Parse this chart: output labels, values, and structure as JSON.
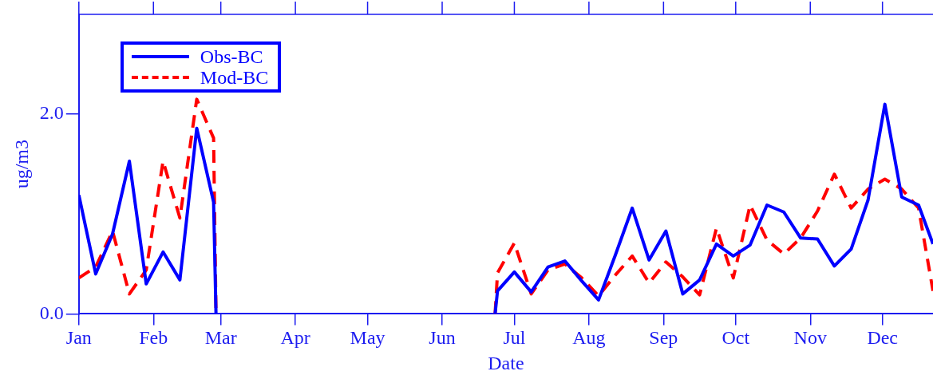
{
  "chart_data": {
    "type": "line",
    "xlabel": "Date",
    "ylabel": "ug/m3",
    "x": [
      "--01-01",
      "--01-08",
      "--01-15",
      "--01-22",
      "--01-29",
      "--02-05",
      "--02-12",
      "--02-19",
      "--02-26",
      "--02-27",
      "--04-15",
      "--06-23",
      "--06-24",
      "--07-01",
      "--07-08",
      "--07-15",
      "--07-22",
      "--07-29",
      "--08-05",
      "--08-12",
      "--08-19",
      "--08-26",
      "--09-02",
      "--09-09",
      "--09-16",
      "--09-23",
      "--09-30",
      "--10-07",
      "--10-14",
      "--10-21",
      "--10-28",
      "--11-04",
      "--11-11",
      "--11-18",
      "--11-25",
      "--12-02",
      "--12-09",
      "--12-16",
      "--12-22"
    ],
    "series": [
      {
        "name": "Obs-BC",
        "color": "#0000ff",
        "line_style": "solid",
        "values": [
          1.19,
          0.4,
          0.8,
          1.53,
          0.3,
          0.62,
          0.34,
          1.86,
          1.12,
          0,
          null,
          0,
          0.23,
          0.42,
          0.22,
          0.47,
          0.53,
          0.33,
          0.14,
          0.59,
          1.06,
          0.54,
          0.83,
          0.2,
          0.34,
          0.7,
          0.58,
          0.69,
          1.09,
          1.02,
          0.76,
          0.75,
          0.48,
          0.65,
          1.14,
          2.1,
          1.17,
          1.09,
          0.7
        ]
      },
      {
        "name": "Mod-BC",
        "color": "#ff0000",
        "line_style": "dashed",
        "values": [
          0.36,
          0.47,
          0.83,
          0.2,
          0.44,
          1.53,
          0.96,
          2.15,
          1.76,
          0,
          null,
          0,
          0.41,
          0.71,
          0.2,
          0.44,
          0.5,
          0.36,
          0.18,
          0.39,
          0.58,
          0.31,
          0.52,
          0.37,
          0.19,
          0.86,
          0.36,
          1.09,
          0.74,
          0.6,
          0.76,
          1.03,
          1.4,
          1.06,
          1.25,
          1.35,
          1.25,
          1.06,
          0.23
        ]
      }
    ],
    "xlim": [
      "--01-01",
      "--12-22"
    ],
    "xticks": [
      {
        "value": "--01-01",
        "label": "Jan"
      },
      {
        "value": "--02-01",
        "label": "Feb"
      },
      {
        "value": "--03-01",
        "label": "Mar"
      },
      {
        "value": "--04-01",
        "label": "Apr"
      },
      {
        "value": "--05-01",
        "label": "May"
      },
      {
        "value": "--06-01",
        "label": "Jun"
      },
      {
        "value": "--07-01",
        "label": "Jul"
      },
      {
        "value": "--08-01",
        "label": "Aug"
      },
      {
        "value": "--09-01",
        "label": "Sep"
      },
      {
        "value": "--10-01",
        "label": "Oct"
      },
      {
        "value": "--11-01",
        "label": "Nov"
      },
      {
        "value": "--12-01",
        "label": "Dec"
      }
    ],
    "ylim": [
      0,
      3
    ],
    "yticks": [
      {
        "value": 0,
        "label": "0.0"
      },
      {
        "value": 2,
        "label": "2.0"
      }
    ],
    "grid": false,
    "legend": "top left",
    "marker": "none"
  }
}
